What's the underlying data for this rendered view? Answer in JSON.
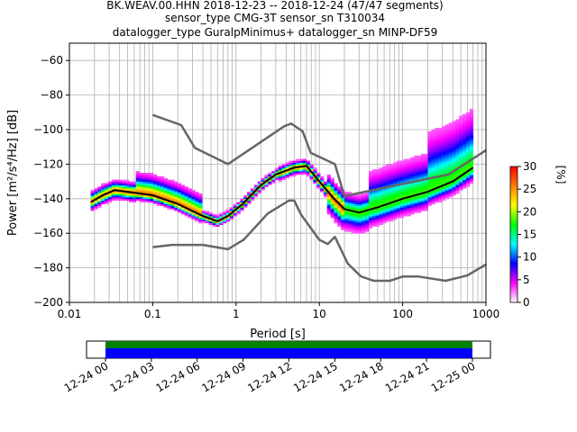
{
  "title": {
    "line1": "BK.WEAV.00.HHN   2018-12-23 -- 2018-12-24  (47/47 segments)",
    "line2": "sensor_type CMG-3T sensor_sn T310034",
    "line3": "datalogger_type GuralpMinimus+ datalogger_sn MINP-DF59"
  },
  "colorbar": {
    "label": "[%]",
    "min": 0,
    "max": 30,
    "ticks": [
      "0",
      "5",
      "10",
      "15",
      "20",
      "25",
      "30"
    ],
    "colors": [
      "#ffffff",
      "#ff00ff",
      "#0000ff",
      "#00ffff",
      "#00ff00",
      "#ffff00",
      "#ff7f00",
      "#ff0000"
    ]
  },
  "chart_data": [
    {
      "type": "heatmap",
      "xlabel": "Period [s]",
      "ylabel": "Power [m²/s⁴/Hz] [dB]",
      "x_scale": "log",
      "xlim": [
        0.01,
        1000
      ],
      "ylim": [
        -200,
        -50
      ],
      "x_ticks": [
        "0.01",
        "0.1",
        "1",
        "10",
        "100",
        "1000"
      ],
      "y_ticks": [
        "−200",
        "−180",
        "−160",
        "−140",
        "−120",
        "−100",
        "−80",
        "−60"
      ],
      "grid": true,
      "series": [
        {
          "role": "noise_model_high",
          "color": "#666666",
          "points": [
            [
              0.1,
              -91.5
            ],
            [
              0.22,
              -97.4
            ],
            [
              0.32,
              -110.5
            ],
            [
              0.8,
              -120
            ],
            [
              3.8,
              -98
            ],
            [
              4.6,
              -96.5
            ],
            [
              6.3,
              -101
            ],
            [
              7.9,
              -113.5
            ],
            [
              15.4,
              -120
            ],
            [
              20,
              -138.5
            ],
            [
              354.8,
              -126
            ],
            [
              1000,
              -112
            ]
          ]
        },
        {
          "role": "noise_model_low",
          "color": "#666666",
          "points": [
            [
              0.1,
              -168
            ],
            [
              0.17,
              -166.7
            ],
            [
              0.4,
              -166.7
            ],
            [
              0.8,
              -169.2
            ],
            [
              1.24,
              -163.7
            ],
            [
              2.4,
              -148.6
            ],
            [
              4.3,
              -141.1
            ],
            [
              5,
              -141.1
            ],
            [
              6,
              -149
            ],
            [
              10,
              -163.8
            ],
            [
              12.6,
              -166.2
            ],
            [
              15.4,
              -162.1
            ],
            [
              21.9,
              -177.5
            ],
            [
              31.6,
              -185
            ],
            [
              45,
              -187.5
            ],
            [
              70,
              -187.5
            ],
            [
              101,
              -185
            ],
            [
              154,
              -185
            ],
            [
              328,
              -187.5
            ],
            [
              600,
              -184.4
            ],
            [
              1000,
              -178
            ]
          ]
        },
        {
          "role": "mode",
          "color": "#000000",
          "points": [
            [
              0.018,
              -142
            ],
            [
              0.025,
              -138
            ],
            [
              0.035,
              -135
            ],
            [
              0.06,
              -136.5
            ],
            [
              0.1,
              -138
            ],
            [
              0.2,
              -143
            ],
            [
              0.4,
              -150
            ],
            [
              0.6,
              -153
            ],
            [
              0.8,
              -150
            ],
            [
              1.2,
              -143
            ],
            [
              2,
              -132
            ],
            [
              3,
              -126
            ],
            [
              5,
              -122
            ],
            [
              7,
              -121
            ],
            [
              10,
              -130
            ],
            [
              15,
              -140
            ],
            [
              20,
              -146
            ],
            [
              30,
              -148
            ],
            [
              50,
              -145
            ],
            [
              100,
              -140
            ],
            [
              200,
              -136
            ],
            [
              400,
              -130
            ],
            [
              700,
              -122
            ]
          ]
        }
      ]
    },
    {
      "type": "timeline",
      "x_ticks": [
        "12-24 00",
        "12-24 03",
        "12-24 06",
        "12-24 09",
        "12-24 12",
        "12-24 15",
        "12-24 18",
        "12-24 21",
        "12-25 00"
      ],
      "coverage": [
        "12-24 00",
        "12-25 00"
      ]
    }
  ]
}
